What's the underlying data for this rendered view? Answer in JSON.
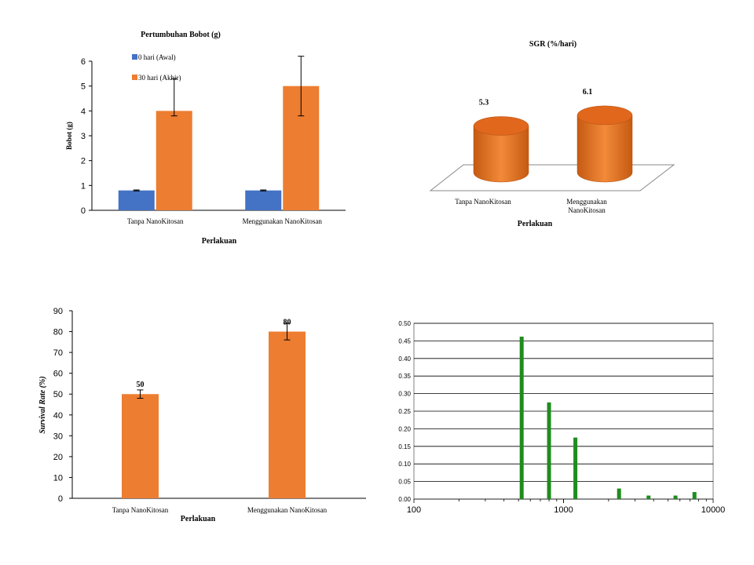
{
  "colors": {
    "blue": "#4472C4",
    "orange": "#ED7D31",
    "green": "#1E8C1E",
    "grid": "#000000"
  },
  "chart_data": [
    {
      "type": "bar",
      "title": "Pertumbuhan Bobot (g)",
      "xlabel": "Perlakuan",
      "ylabel": "Bobot (g)",
      "ylim": [
        0,
        6
      ],
      "yticks": [
        "0",
        "1",
        "2",
        "3",
        "4",
        "5",
        "6"
      ],
      "categories": [
        "Tanpa NanoKitosan",
        "Menggunakan NanoKitosan"
      ],
      "legend_position": "top-left",
      "series": [
        {
          "name": "0 hari (Awal)",
          "values": [
            0.8,
            0.8
          ],
          "errors": [
            0.02,
            0.02
          ]
        },
        {
          "name": "30 hari (Akhir)",
          "values": [
            4.0,
            5.0
          ],
          "errors": [
            1.3,
            1.2
          ],
          "errors_low": [
            0.2,
            1.2
          ]
        }
      ],
      "grid": false
    },
    {
      "type": "bar",
      "title": "SGR (%/hari)",
      "xlabel": "Perlakuan",
      "categories": [
        "Tanpa NanoKitosan",
        "Menggunakan NanoKitosan"
      ],
      "values": [
        5.3,
        6.1
      ],
      "data_labels": [
        "5.3",
        "6.1"
      ],
      "style": "3d-cylinder",
      "grid": false
    },
    {
      "type": "bar",
      "title": "",
      "xlabel": "Perlakuan",
      "ylabel": "Survival Rate (%)",
      "ylim": [
        0,
        90
      ],
      "yticks": [
        "0",
        "10",
        "20",
        "30",
        "40",
        "50",
        "60",
        "70",
        "80",
        "90"
      ],
      "categories": [
        "Tanpa NanoKitosan",
        "Menggunakan NanoKitosan"
      ],
      "values": [
        50,
        80
      ],
      "errors": [
        2,
        4
      ],
      "data_labels": [
        "50",
        "80"
      ],
      "grid": false
    },
    {
      "type": "bar",
      "title": "",
      "xlabel": "",
      "ylabel": "",
      "xscale": "log",
      "xlim": [
        100,
        10000
      ],
      "xticks": [
        "100",
        "1000",
        "10000"
      ],
      "ylim": [
        0,
        0.5
      ],
      "yticks": [
        "0.00",
        "0.05",
        "0.10",
        "0.15",
        "0.20",
        "0.25",
        "0.30",
        "0.35",
        "0.40",
        "0.45",
        "0.50"
      ],
      "x": [
        525,
        800,
        1200,
        2350,
        3700,
        5600,
        7500
      ],
      "values": [
        0.462,
        0.275,
        0.175,
        0.03,
        0.01,
        0.01,
        0.02
      ],
      "grid": true
    }
  ]
}
